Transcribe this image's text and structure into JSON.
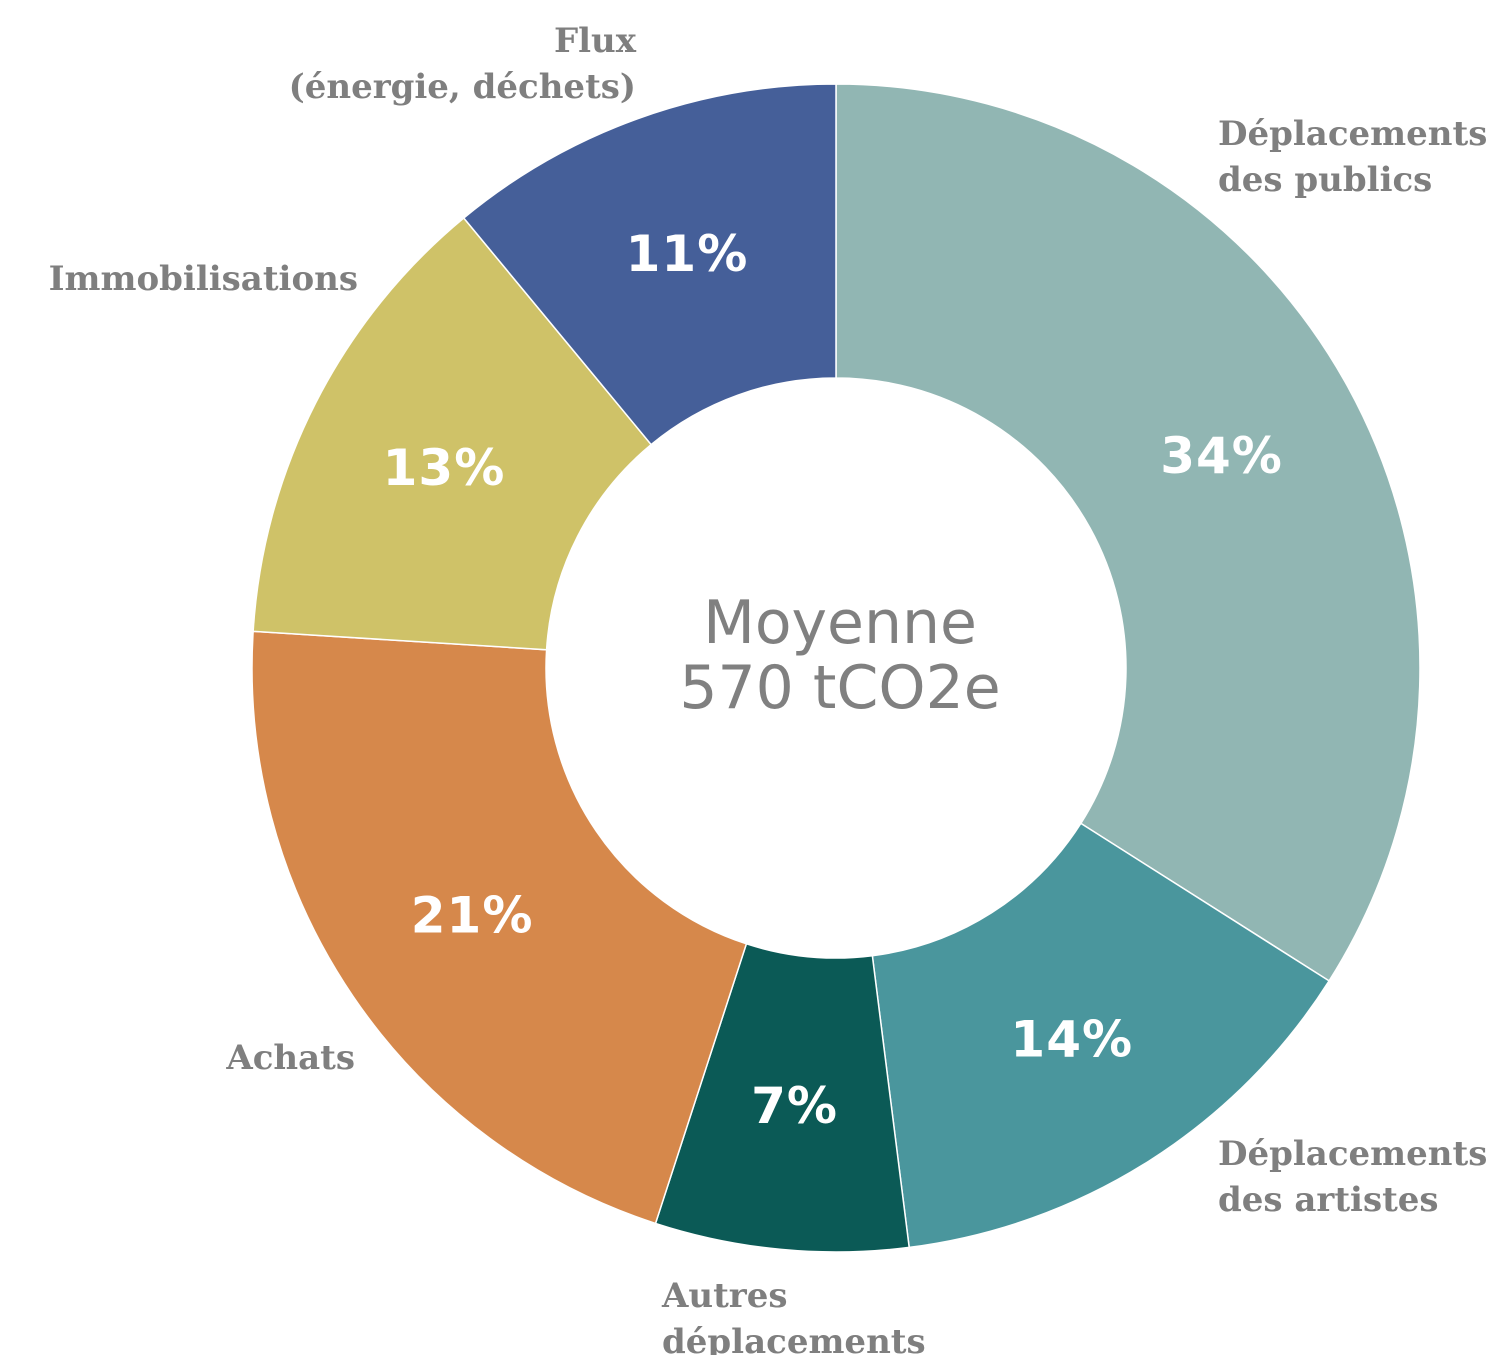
{
  "chart_data": {
    "type": "pie",
    "donut": true,
    "center": {
      "line1": "Moyenne",
      "line2": "570 tCO2e"
    },
    "slices": [
      {
        "name_lines": [
          "Déplacements",
          "des publics"
        ],
        "value": 34,
        "label": "34%",
        "color": "#91b6b3"
      },
      {
        "name_lines": [
          "Déplacements",
          "des artistes"
        ],
        "value": 14,
        "label": "14%",
        "color": "#4a969d"
      },
      {
        "name_lines": [
          "Autres",
          "déplacements"
        ],
        "value": 7,
        "label": "7%",
        "color": "#0b5a56"
      },
      {
        "name_lines": [
          "Achats"
        ],
        "value": 21,
        "label": "21%",
        "color": "#d6884b"
      },
      {
        "name_lines": [
          "Immobilisations"
        ],
        "value": 13,
        "label": "13%",
        "color": "#cfc268"
      },
      {
        "name_lines": [
          "Flux",
          "(énergie, déchets)"
        ],
        "value": 11,
        "label": "11%",
        "color": "#455f99"
      }
    ],
    "legend": "none"
  }
}
